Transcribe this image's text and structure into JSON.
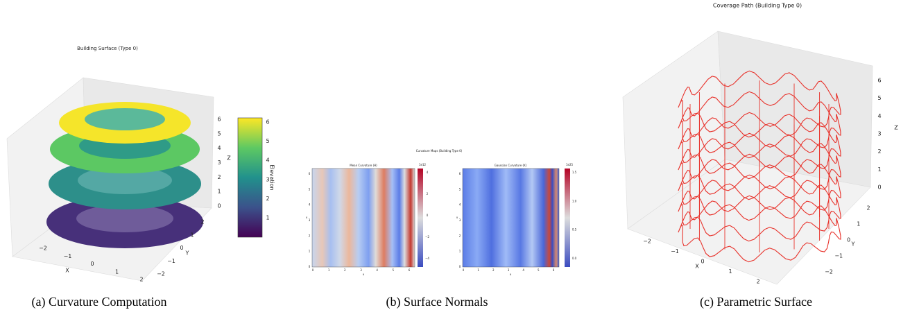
{
  "panels": [
    {
      "title": "Building Surface (Type 0)",
      "x_label": "X",
      "y_label": "Y",
      "z_label": "Z",
      "x_ticks": [
        "−2",
        "−1",
        "0",
        "1",
        "2"
      ],
      "y_ticks": [
        "−2",
        "−1",
        "0",
        "1",
        "2"
      ],
      "z_ticks": [
        "0",
        "1",
        "2",
        "3",
        "4",
        "5",
        "6"
      ],
      "colorbar_label": "Elevation",
      "colorbar_ticks": [
        "1",
        "2",
        "3",
        "4",
        "5",
        "6"
      ],
      "caption": "(a) Curvature Computation"
    },
    {
      "title": "Curvature Maps (Building Type 0)",
      "maps": [
        {
          "title": "Mean Curvature (H)",
          "scale": "1e12",
          "x_label": "u",
          "y_label": "v",
          "x_ticks": [
            "0",
            "1",
            "2",
            "3",
            "4",
            "5",
            "6"
          ],
          "y_ticks": [
            "0",
            "1",
            "2",
            "3",
            "4",
            "5",
            "6"
          ],
          "colorbar_ticks": [
            "−4",
            "−2",
            "0",
            "2",
            "4"
          ]
        },
        {
          "title": "Gaussian Curvature (K)",
          "scale": "1e25",
          "x_label": "u",
          "y_label": "v",
          "x_ticks": [
            "0",
            "1",
            "2",
            "3",
            "4",
            "5",
            "6"
          ],
          "y_ticks": [
            "0",
            "1",
            "2",
            "3",
            "4",
            "5",
            "6"
          ],
          "colorbar_ticks": [
            "0.0",
            "0.5",
            "1.0",
            "1.5"
          ]
        }
      ],
      "caption": "(b) Surface Normals"
    },
    {
      "title": "Coverage Path (Building Type 0)",
      "x_label": "X",
      "y_label": "Y",
      "z_label": "Z",
      "x_ticks": [
        "−2",
        "−1",
        "0",
        "1",
        "2"
      ],
      "y_ticks": [
        "−2",
        "−1",
        "0",
        "1",
        "2"
      ],
      "z_ticks": [
        "0",
        "1",
        "2",
        "3",
        "4",
        "5",
        "6"
      ],
      "caption": "(c) Parametric Surface"
    }
  ]
}
